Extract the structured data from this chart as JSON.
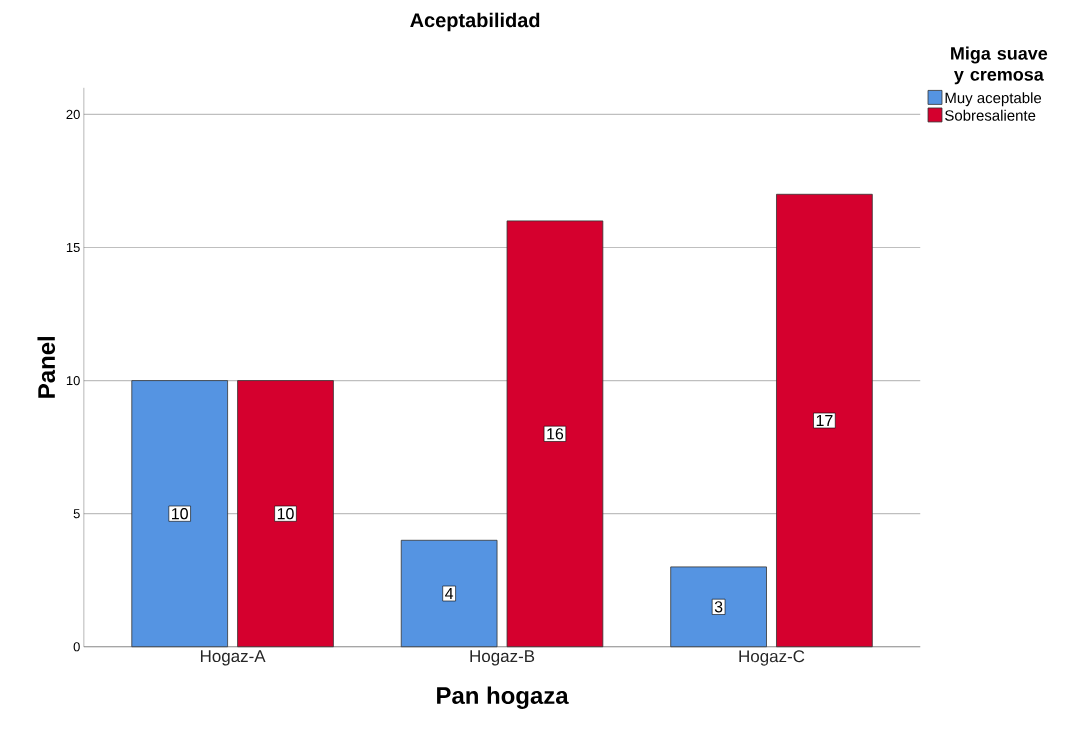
{
  "chart_data": {
    "type": "bar",
    "title": "Aceptabilidad",
    "xlabel": "Pan hogaza",
    "ylabel": "Panel",
    "legend_title": "Miga suave y cremosa",
    "categories": [
      "Hogaz-A",
      "Hogaz-B",
      "Hogaz-C"
    ],
    "series": [
      {
        "name": "Muy aceptable",
        "color": "#5594e2",
        "values": [
          10,
          4,
          3
        ]
      },
      {
        "name": "Sobresaliente",
        "color": "#d5002e",
        "values": [
          10,
          16,
          17
        ]
      }
    ],
    "ylim": [
      0,
      21
    ],
    "yticks": [
      0,
      5,
      10,
      15,
      20
    ],
    "grid": "y",
    "legend": "right",
    "data_labels": true
  }
}
